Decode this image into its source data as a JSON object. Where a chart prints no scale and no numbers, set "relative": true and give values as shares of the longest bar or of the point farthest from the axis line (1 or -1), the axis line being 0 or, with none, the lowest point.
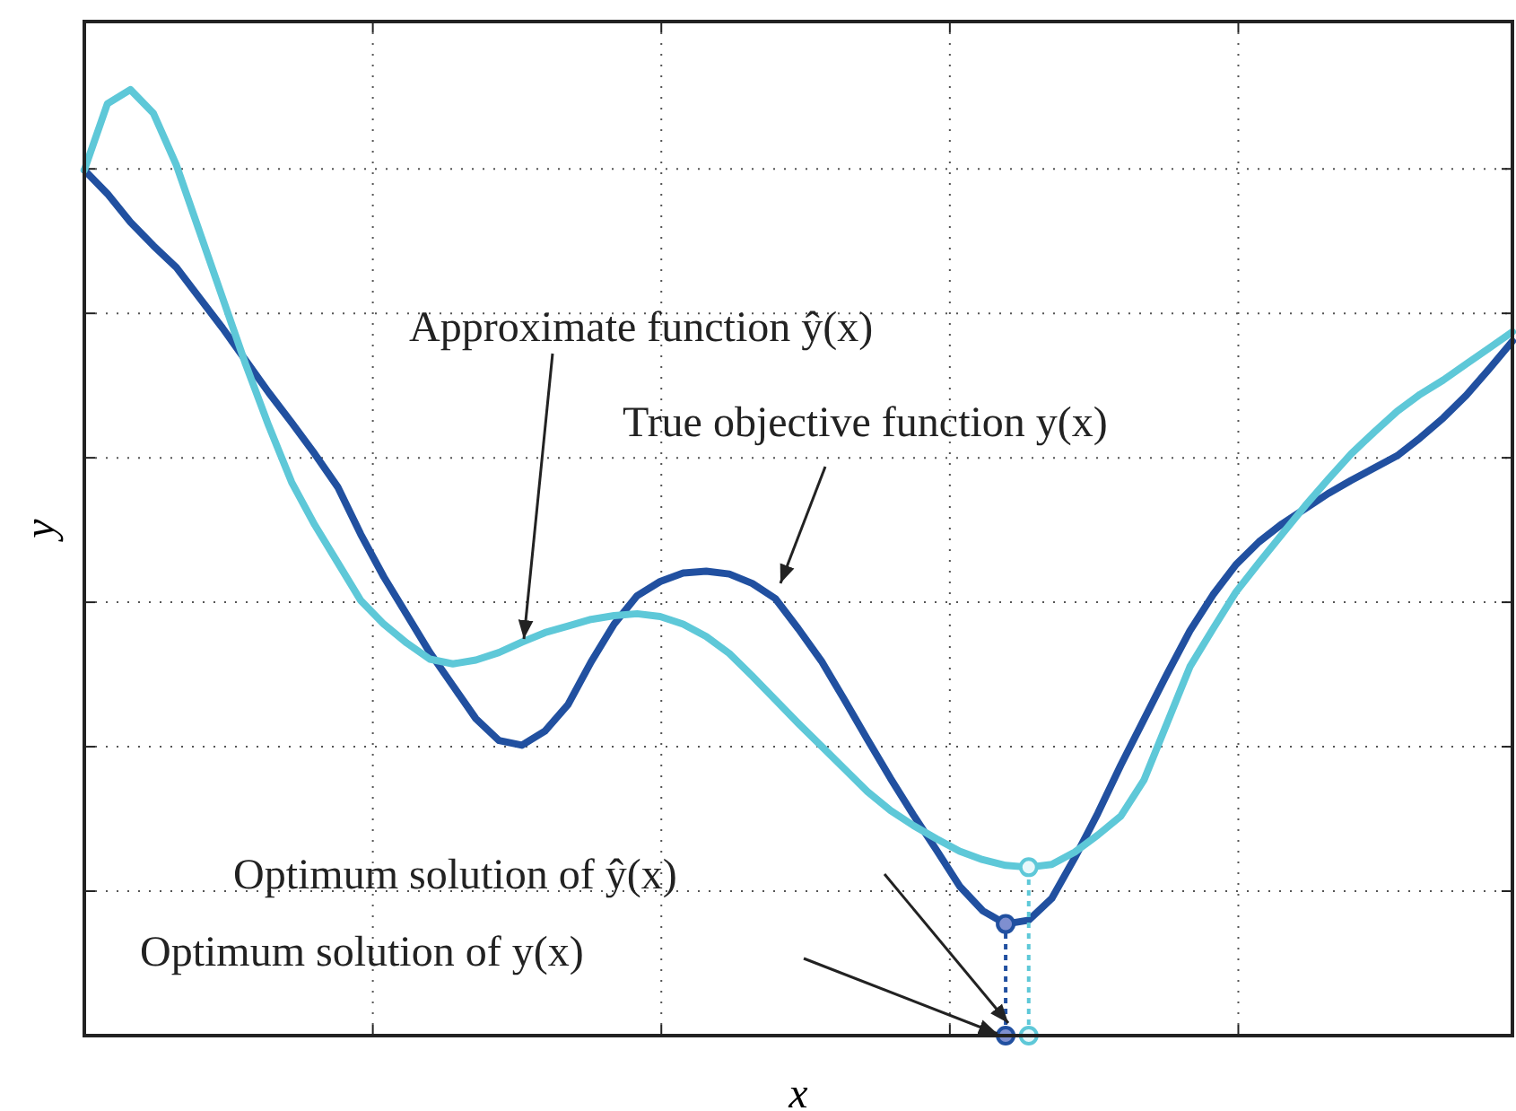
{
  "chart_data": {
    "type": "line",
    "relative": true,
    "xlabel": "x",
    "ylabel": "y",
    "grid": true,
    "marker": "none",
    "line_style": "solid",
    "categories": [
      null,
      null,
      null,
      null,
      null,
      null,
      null,
      null,
      null,
      null,
      null,
      null,
      null,
      null,
      null,
      null,
      null,
      null,
      null,
      null,
      null,
      null,
      null,
      null,
      null,
      null,
      null,
      null,
      null,
      null,
      null,
      null,
      null,
      null,
      null,
      null,
      null,
      null,
      null,
      null,
      null,
      null,
      null,
      null,
      null,
      null,
      null,
      null,
      null,
      null,
      null,
      null,
      null,
      null,
      null,
      null,
      null,
      null,
      null,
      null,
      null,
      null,
      null
    ],
    "series": [
      {
        "color": "#2150a0",
        "values": [
          0.915,
          0.89,
          0.86,
          0.835,
          0.812,
          0.78,
          0.748,
          0.714,
          0.68,
          0.648,
          0.615,
          0.58,
          0.53,
          0.485,
          0.445,
          0.405,
          0.37,
          0.335,
          0.312,
          0.307,
          0.322,
          0.35,
          0.395,
          0.435,
          0.465,
          0.48,
          0.489,
          0.491,
          0.488,
          0.478,
          0.462,
          0.43,
          0.396,
          0.355,
          0.313,
          0.272,
          0.233,
          0.196,
          0.158,
          0.132,
          0.118,
          0.122,
          0.145,
          0.188,
          0.235,
          0.286,
          0.334,
          0.382,
          0.428,
          0.466,
          0.498,
          0.522,
          0.541,
          0.557,
          0.573,
          0.587,
          0.6,
          0.613,
          0.632,
          0.653,
          0.677,
          0.705,
          0.734
        ]
      },
      {
        "color": "#5ec8d8",
        "values": [
          0.915,
          0.985,
          1,
          0.975,
          0.92,
          0.85,
          0.78,
          0.71,
          0.645,
          0.585,
          0.54,
          0.5,
          0.46,
          0.435,
          0.415,
          0.398,
          0.393,
          0.397,
          0.405,
          0.416,
          0.426,
          0.433,
          0.44,
          0.444,
          0.446,
          0.443,
          0.435,
          0.422,
          0.404,
          0.38,
          0.355,
          0.33,
          0.306,
          0.282,
          0.258,
          0.238,
          0.222,
          0.208,
          0.195,
          0.186,
          0.18,
          0.178,
          0.181,
          0.194,
          0.212,
          0.232,
          0.27,
          0.33,
          0.39,
          0.43,
          0.469,
          0.5,
          0.53,
          0.56,
          0.588,
          0.615,
          0.638,
          0.66,
          0.678,
          0.693,
          0.71,
          0.727,
          0.744
        ]
      }
    ],
    "annotations": [
      "Approximate function ŷ(x)",
      "True objective function y(x)",
      "Optimum solution of ŷ(x)",
      "Optimum solution of y(x)"
    ]
  }
}
